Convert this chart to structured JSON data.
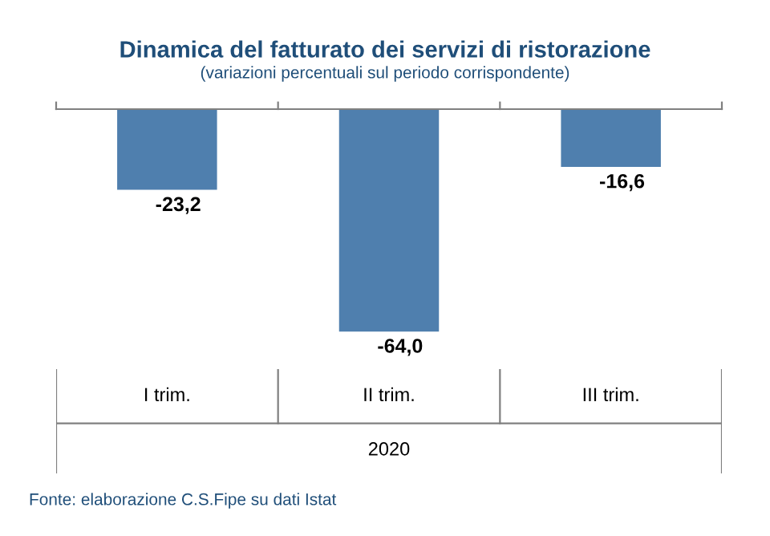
{
  "chart_data": {
    "type": "bar",
    "title": "Dinamica del fatturato dei servizi di ristorazione",
    "subtitle": "(variazioni percentuali sul periodo corrispondente)",
    "categories": [
      "I trim.",
      "II trim.",
      "III trim."
    ],
    "xlabel": "2020",
    "values": [
      -23.2,
      -64.0,
      -16.6
    ],
    "value_labels": [
      "-23,2",
      "-64,0",
      "-16,6"
    ],
    "color": "#4f7fae",
    "annotations": [
      "Fonte: elaborazione C.S.Fipe su dati Istat"
    ]
  }
}
